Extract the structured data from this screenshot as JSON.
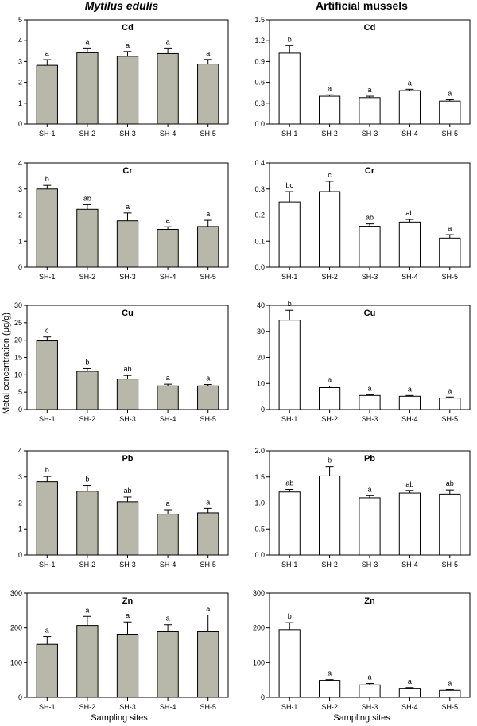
{
  "columns": [
    {
      "title": "Mytilus edulis",
      "italic": true,
      "bar_color": "#b8b8aa"
    },
    {
      "title": "Artificial mussels",
      "italic": false,
      "bar_color": "#ffffff"
    }
  ],
  "y_axis_title": "Metal concentration (μg/g)",
  "x_axis_title": "Sampling sites",
  "chart_data": [
    {
      "type": "bar",
      "title": "Cd",
      "column": "Mytilus edulis",
      "categories": [
        "SH-1",
        "SH-2",
        "SH-3",
        "SH-4",
        "SH-5"
      ],
      "values": [
        2.82,
        3.42,
        3.25,
        3.38,
        2.88
      ],
      "errors": [
        0.27,
        0.23,
        0.23,
        0.27,
        0.22
      ],
      "labels": [
        "a",
        "a",
        "a",
        "a",
        "a"
      ],
      "ylim": [
        0,
        5
      ],
      "yticks": [
        "0",
        "1",
        "2",
        "3",
        "4",
        "5"
      ]
    },
    {
      "type": "bar",
      "title": "Cd",
      "column": "Artificial mussels",
      "categories": [
        "SH-1",
        "SH-2",
        "SH-3",
        "SH-4",
        "SH-5"
      ],
      "values": [
        1.02,
        0.4,
        0.38,
        0.48,
        0.33
      ],
      "errors": [
        0.11,
        0.02,
        0.02,
        0.02,
        0.02
      ],
      "labels": [
        "b",
        "a",
        "a",
        "a",
        "a"
      ],
      "ylim": [
        0,
        1.5
      ],
      "yticks": [
        "0.0",
        "0.3",
        "0.6",
        "0.9",
        "1.2",
        "1.5"
      ]
    },
    {
      "type": "bar",
      "title": "Cr",
      "column": "Mytilus edulis",
      "categories": [
        "SH-1",
        "SH-2",
        "SH-3",
        "SH-4",
        "SH-5"
      ],
      "values": [
        3.0,
        2.22,
        1.78,
        1.45,
        1.56
      ],
      "errors": [
        0.14,
        0.18,
        0.3,
        0.1,
        0.24
      ],
      "labels": [
        "b",
        "ab",
        "a",
        "a",
        "a"
      ],
      "ylim": [
        0,
        4
      ],
      "yticks": [
        "0",
        "1",
        "2",
        "3",
        "4"
      ]
    },
    {
      "type": "bar",
      "title": "Cr",
      "column": "Artificial mussels",
      "categories": [
        "SH-1",
        "SH-2",
        "SH-3",
        "SH-4",
        "SH-5"
      ],
      "values": [
        0.25,
        0.29,
        0.157,
        0.173,
        0.112
      ],
      "errors": [
        0.04,
        0.04,
        0.009,
        0.01,
        0.013
      ],
      "labels": [
        "bc",
        "c",
        "ab",
        "ab",
        "a"
      ],
      "ylim": [
        0,
        0.4
      ],
      "yticks": [
        "0.0",
        "0.1",
        "0.2",
        "0.3",
        "0.4"
      ]
    },
    {
      "type": "bar",
      "title": "Cu",
      "column": "Mytilus edulis",
      "categories": [
        "SH-1",
        "SH-2",
        "SH-3",
        "SH-4",
        "SH-5"
      ],
      "values": [
        19.8,
        11.0,
        8.8,
        6.8,
        6.8
      ],
      "errors": [
        1.1,
        0.8,
        1.0,
        0.5,
        0.4
      ],
      "labels": [
        "c",
        "b",
        "ab",
        "a",
        "a"
      ],
      "ylim": [
        0,
        30
      ],
      "yticks": [
        "0",
        "5",
        "10",
        "15",
        "20",
        "25",
        "30"
      ]
    },
    {
      "type": "bar",
      "title": "Cu",
      "column": "Artificial mussels",
      "categories": [
        "SH-1",
        "SH-2",
        "SH-3",
        "SH-4",
        "SH-5"
      ],
      "values": [
        34.3,
        8.4,
        5.4,
        5.1,
        4.4
      ],
      "errors": [
        3.8,
        0.6,
        0.3,
        0.3,
        0.4
      ],
      "labels": [
        "b",
        "a",
        "a",
        "a",
        "a"
      ],
      "ylim": [
        0,
        40
      ],
      "yticks": [
        "0",
        "10",
        "20",
        "30",
        "40"
      ]
    },
    {
      "type": "bar",
      "title": "Pb",
      "column": "Mytilus edulis",
      "categories": [
        "SH-1",
        "SH-2",
        "SH-3",
        "SH-4",
        "SH-5"
      ],
      "values": [
        2.82,
        2.45,
        2.05,
        1.57,
        1.62
      ],
      "errors": [
        0.2,
        0.22,
        0.18,
        0.17,
        0.17
      ],
      "labels": [
        "b",
        "b",
        "ab",
        "a",
        "a"
      ],
      "ylim": [
        0,
        4
      ],
      "yticks": [
        "0",
        "1",
        "2",
        "3",
        "4"
      ]
    },
    {
      "type": "bar",
      "title": "Pb",
      "column": "Artificial mussels",
      "categories": [
        "SH-1",
        "SH-2",
        "SH-3",
        "SH-4",
        "SH-5"
      ],
      "values": [
        1.21,
        1.52,
        1.1,
        1.19,
        1.17
      ],
      "errors": [
        0.05,
        0.18,
        0.04,
        0.05,
        0.08
      ],
      "labels": [
        "ab",
        "b",
        "a",
        "ab",
        "ab"
      ],
      "ylim": [
        0,
        2.0
      ],
      "yticks": [
        "0.0",
        "0.5",
        "1.0",
        "1.5",
        "2.0"
      ]
    },
    {
      "type": "bar",
      "title": "Zn",
      "column": "Mytilus edulis",
      "categories": [
        "SH-1",
        "SH-2",
        "SH-3",
        "SH-4",
        "SH-5"
      ],
      "values": [
        153,
        207,
        182,
        189,
        189
      ],
      "errors": [
        22,
        26,
        35,
        20,
        48
      ],
      "labels": [
        "a",
        "a",
        "a",
        "a",
        "a"
      ],
      "ylim": [
        0,
        300
      ],
      "yticks": [
        "0",
        "100",
        "200",
        "300"
      ]
    },
    {
      "type": "bar",
      "title": "Zn",
      "column": "Artificial mussels",
      "categories": [
        "SH-1",
        "SH-2",
        "SH-3",
        "SH-4",
        "SH-5"
      ],
      "values": [
        195,
        49,
        36,
        26,
        20
      ],
      "errors": [
        20,
        2,
        4,
        2,
        2
      ],
      "labels": [
        "b",
        "a",
        "a",
        "a",
        "a"
      ],
      "ylim": [
        0,
        300
      ],
      "yticks": [
        "0",
        "100",
        "200",
        "300"
      ]
    }
  ]
}
